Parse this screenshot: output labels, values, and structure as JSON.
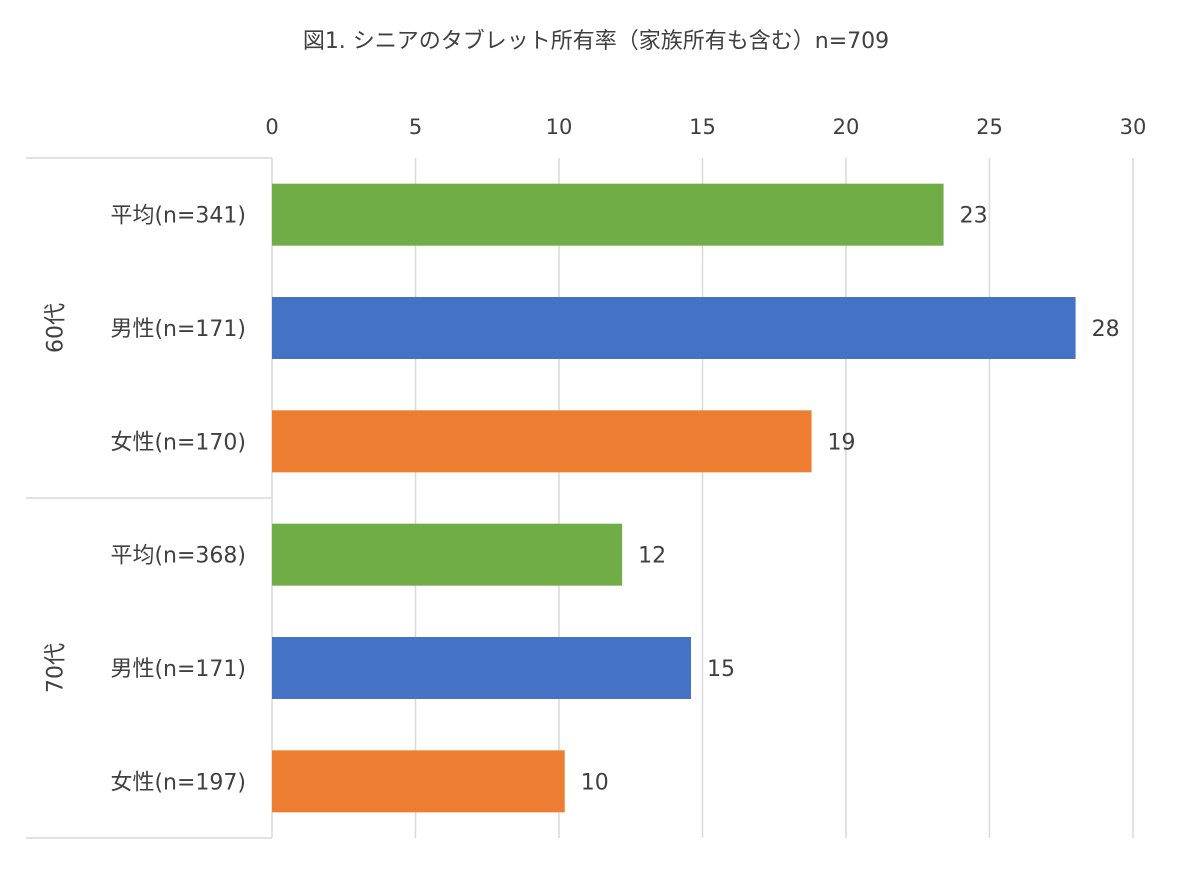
{
  "chart_data": {
    "type": "bar",
    "orientation": "horizontal",
    "title": "図1. シニアのタブレット所有率（家族所有も含む）n=709",
    "xlim": [
      0,
      30
    ],
    "xticks": [
      0,
      5,
      10,
      15,
      20,
      25,
      30
    ],
    "grid": true,
    "groups": [
      {
        "label": "60代",
        "bars": [
          {
            "label": "平均(n=341)",
            "value": 23.4,
            "value_label": "23",
            "series": "平均"
          },
          {
            "label": "男性(n=171)",
            "value": 28.0,
            "value_label": "28",
            "series": "男性"
          },
          {
            "label": "女性(n=170)",
            "value": 18.8,
            "value_label": "19",
            "series": "女性"
          }
        ]
      },
      {
        "label": "70代",
        "bars": [
          {
            "label": "平均(n=368)",
            "value": 12.2,
            "value_label": "12",
            "series": "平均"
          },
          {
            "label": "男性(n=171)",
            "value": 14.6,
            "value_label": "15",
            "series": "男性"
          },
          {
            "label": "女性(n=197)",
            "value": 10.2,
            "value_label": "10",
            "series": "女性"
          }
        ]
      }
    ],
    "series_colors": {
      "平均": "#70ad47",
      "男性": "#4472c4",
      "女性": "#ed7d31"
    }
  }
}
